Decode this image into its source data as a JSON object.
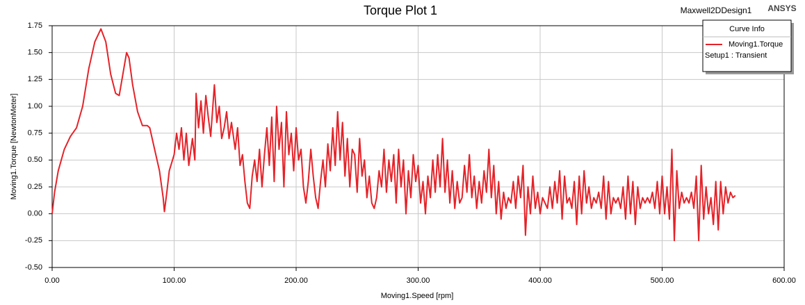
{
  "chart_data": {
    "type": "line",
    "title": "Torque Plot 1",
    "design": "Maxwell2DDesign1",
    "brand": "ANSYS",
    "x_label": "Moving1.Speed [rpm]",
    "y_label": "Moving1.Torque [NewtonMeter]",
    "legend_title": "Curve Info",
    "legend_position": "top-right",
    "grid": true,
    "xlim": [
      0,
      600
    ],
    "ylim": [
      -0.5,
      1.75
    ],
    "xticks": [
      {
        "value": 0,
        "label": "0.00"
      },
      {
        "value": 100,
        "label": "100.00"
      },
      {
        "value": 200,
        "label": "200.00"
      },
      {
        "value": 300,
        "label": "300.00"
      },
      {
        "value": 400,
        "label": "400.00"
      },
      {
        "value": 500,
        "label": "500.00"
      },
      {
        "value": 600,
        "label": "600.00"
      }
    ],
    "yticks": [
      {
        "value": -0.5,
        "label": "-0.50"
      },
      -0.25,
      {
        "value": 0,
        "label": "0.00"
      },
      0.25,
      {
        "value": 0.5,
        "label": "0.50"
      },
      0.75,
      {
        "value": 1,
        "label": "1.00"
      },
      1.25,
      {
        "value": 1.5,
        "label": "1.50"
      },
      1.75
    ],
    "x": [
      0,
      2,
      5,
      10,
      15,
      20,
      25,
      30,
      35,
      40,
      44,
      48,
      52,
      55,
      58,
      61,
      63,
      66,
      70,
      74,
      78,
      80,
      84,
      88,
      91,
      92,
      94,
      96,
      100,
      102,
      104,
      106,
      108,
      110,
      112,
      115,
      117,
      118,
      120,
      122,
      124,
      126,
      128,
      130,
      133,
      135,
      137,
      139,
      141,
      143,
      145,
      147,
      150,
      152,
      154,
      156,
      158,
      160,
      162,
      164,
      166,
      168,
      170,
      172,
      174,
      176,
      178,
      180,
      182,
      184,
      186,
      188,
      190,
      192,
      194,
      196,
      198,
      200,
      202,
      204,
      206,
      208,
      210,
      212,
      214,
      216,
      218,
      220,
      222,
      224,
      226,
      228,
      230,
      232,
      234,
      236,
      238,
      240,
      242,
      244,
      246,
      248,
      250,
      252,
      254,
      256,
      258,
      260,
      262,
      264,
      266,
      268,
      270,
      272,
      274,
      276,
      278,
      280,
      282,
      284,
      286,
      288,
      290,
      292,
      294,
      296,
      298,
      300,
      302,
      304,
      306,
      308,
      310,
      312,
      314,
      316,
      318,
      320,
      322,
      324,
      326,
      328,
      330,
      332,
      334,
      336,
      338,
      340,
      342,
      344,
      346,
      348,
      350,
      352,
      354,
      356,
      358,
      360,
      362,
      364,
      366,
      368,
      370,
      372,
      374,
      376,
      378,
      380,
      382,
      384,
      386,
      388,
      390,
      392,
      394,
      396,
      398,
      400,
      402,
      404,
      406,
      408,
      410,
      412,
      414,
      416,
      418,
      420,
      422,
      424,
      426,
      428,
      430,
      432,
      434,
      436,
      438,
      440,
      442,
      444,
      446,
      448,
      450,
      452,
      454,
      456,
      458,
      460,
      462,
      464,
      466,
      468,
      470,
      472,
      474,
      476,
      478,
      480,
      482,
      484,
      486,
      488,
      490,
      492,
      494,
      496,
      498,
      500,
      502,
      504,
      506,
      508,
      510,
      512,
      514,
      516,
      518,
      520,
      522,
      524,
      526,
      528,
      530,
      532,
      534,
      536,
      538,
      540,
      542,
      544,
      546,
      548,
      550,
      552,
      554,
      556,
      558,
      560
    ],
    "series": [
      {
        "name": "Moving1.Torque",
        "setup": "Setup1 : Transient",
        "color": "#e52228",
        "values": [
          0,
          0.2,
          0.4,
          0.6,
          0.72,
          0.8,
          1.0,
          1.35,
          1.6,
          1.72,
          1.6,
          1.3,
          1.12,
          1.1,
          1.3,
          1.5,
          1.45,
          1.2,
          0.95,
          0.82,
          0.82,
          0.8,
          0.6,
          0.4,
          0.15,
          0.02,
          0.2,
          0.4,
          0.55,
          0.75,
          0.6,
          0.8,
          0.5,
          0.75,
          0.45,
          0.7,
          0.5,
          1.12,
          0.8,
          1.05,
          0.75,
          1.1,
          0.9,
          0.72,
          1.2,
          0.85,
          1.0,
          0.7,
          0.8,
          0.95,
          0.7,
          0.85,
          0.6,
          0.8,
          0.45,
          0.55,
          0.3,
          0.1,
          0.05,
          0.35,
          0.5,
          0.3,
          0.6,
          0.25,
          0.55,
          0.8,
          0.45,
          0.9,
          0.3,
          1.0,
          0.6,
          0.85,
          0.25,
          0.95,
          0.55,
          0.75,
          0.4,
          0.8,
          0.5,
          0.6,
          0.25,
          0.1,
          0.3,
          0.6,
          0.35,
          0.15,
          0.05,
          0.3,
          0.5,
          0.25,
          0.65,
          0.4,
          0.8,
          0.45,
          0.95,
          0.5,
          0.85,
          0.35,
          0.7,
          0.25,
          0.6,
          0.55,
          0.2,
          0.7,
          0.35,
          0.5,
          0.15,
          0.35,
          0.1,
          0.05,
          0.15,
          0.4,
          0.25,
          0.6,
          0.2,
          0.5,
          0.3,
          0.55,
          0.1,
          0.6,
          0.25,
          0.5,
          0.0,
          0.4,
          0.15,
          0.55,
          0.3,
          0.45,
          0.1,
          0.3,
          0.0,
          0.35,
          0.15,
          0.5,
          0.2,
          0.55,
          0.25,
          0.7,
          0.2,
          0.5,
          0.1,
          0.4,
          0.05,
          0.3,
          0.1,
          0.15,
          0.45,
          0.2,
          0.55,
          0.15,
          0.35,
          0.05,
          0.3,
          0.1,
          0.4,
          0.2,
          0.6,
          0.15,
          0.45,
          0.0,
          0.3,
          -0.05,
          0.2,
          0.05,
          0.15,
          0.1,
          0.3,
          0.05,
          0.35,
          0.15,
          0.45,
          -0.2,
          0.25,
          0.0,
          0.35,
          0.05,
          0.2,
          0.0,
          0.15,
          0.1,
          0.05,
          0.25,
          0.05,
          0.3,
          0.1,
          0.4,
          -0.05,
          0.35,
          0.1,
          0.15,
          0.05,
          0.3,
          -0.1,
          0.35,
          0.0,
          0.4,
          0.1,
          0.25,
          0.05,
          0.15,
          0.1,
          0.2,
          0.05,
          0.35,
          -0.05,
          0.3,
          0.0,
          0.15,
          0.1,
          0.15,
          0.05,
          0.25,
          -0.05,
          0.35,
          0.0,
          0.3,
          -0.1,
          0.25,
          0.05,
          0.15,
          0.1,
          0.15,
          0.1,
          0.2,
          0.05,
          0.3,
          0.0,
          0.35,
          0.0,
          0.25,
          -0.05,
          0.6,
          -0.25,
          0.4,
          0.05,
          0.2,
          0.1,
          0.15,
          0.1,
          0.2,
          0.05,
          0.35,
          -0.25,
          0.45,
          -0.05,
          0.25,
          0.0,
          0.15,
          -0.1,
          0.3,
          -0.15,
          0.3,
          0.0,
          0.25,
          0.1,
          0.2,
          0.15,
          0.17
        ]
      }
    ]
  }
}
